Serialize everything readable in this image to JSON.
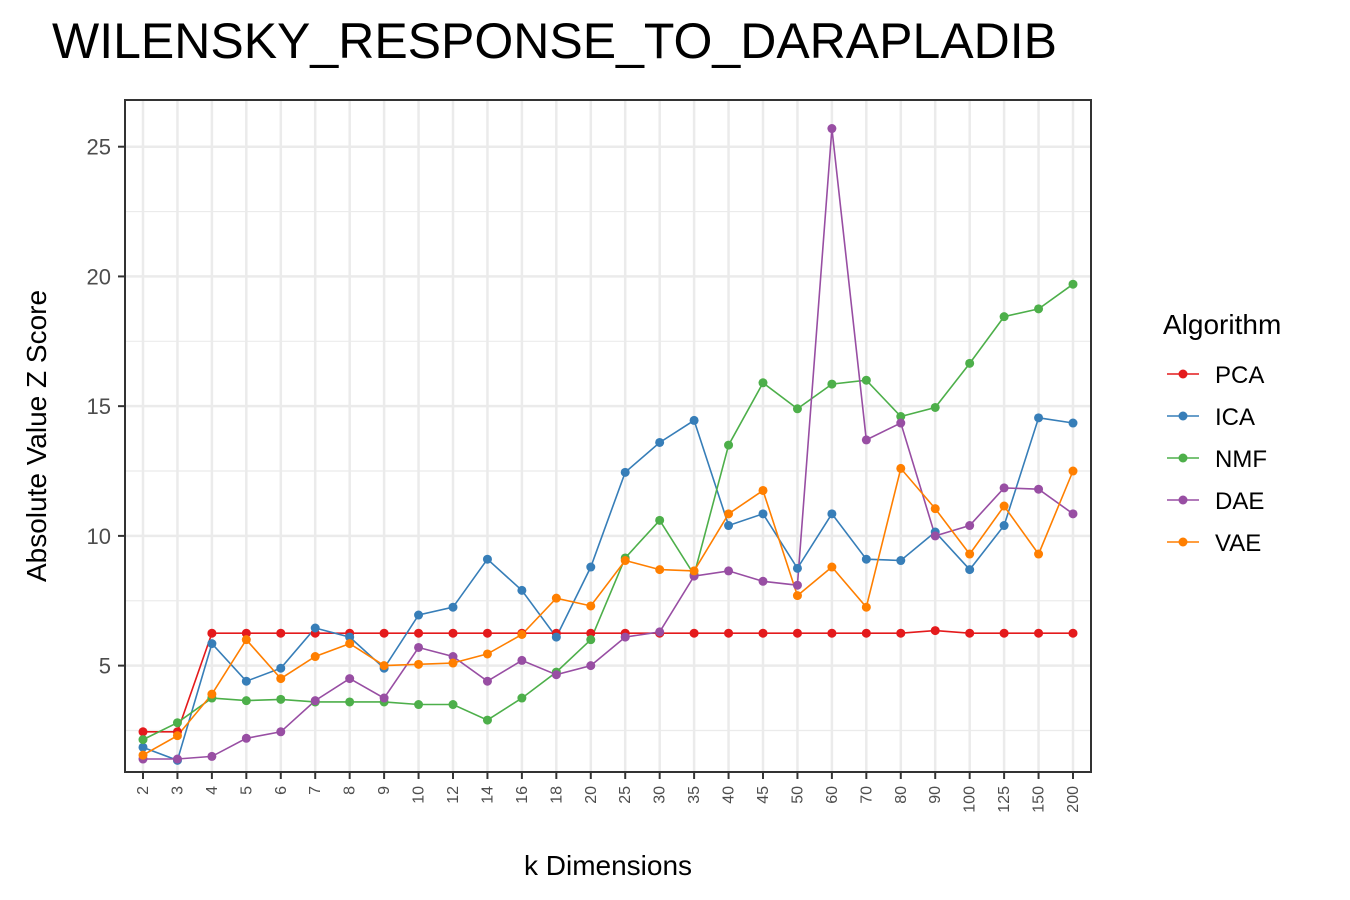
{
  "chart_data": {
    "type": "line",
    "title": "WILENSKY_RESPONSE_TO_DARAPLADIB",
    "xlabel": "k Dimensions",
    "ylabel": "Absolute Value Z Score",
    "ylim": [
      0.9,
      26.8
    ],
    "yticks": [
      5,
      10,
      15,
      20,
      25
    ],
    "grid": true,
    "legend": {
      "title": "Algorithm",
      "position": "right"
    },
    "categories": [
      "2",
      "3",
      "4",
      "5",
      "6",
      "7",
      "8",
      "9",
      "10",
      "12",
      "14",
      "16",
      "18",
      "20",
      "25",
      "30",
      "35",
      "40",
      "45",
      "50",
      "60",
      "70",
      "80",
      "90",
      "100",
      "125",
      "150",
      "200"
    ],
    "series": [
      {
        "name": "PCA",
        "color": "#E41A1C",
        "values": [
          2.45,
          2.45,
          6.25,
          6.25,
          6.25,
          6.25,
          6.25,
          6.25,
          6.25,
          6.25,
          6.25,
          6.25,
          6.25,
          6.25,
          6.25,
          6.25,
          6.25,
          6.25,
          6.25,
          6.25,
          6.25,
          6.25,
          6.25,
          6.35,
          6.25,
          6.25,
          6.25,
          6.25
        ]
      },
      {
        "name": "ICA",
        "color": "#377EB8",
        "values": [
          1.85,
          1.35,
          5.85,
          4.4,
          4.9,
          6.45,
          6.1,
          4.9,
          6.95,
          7.25,
          9.1,
          7.9,
          6.1,
          8.8,
          12.45,
          13.6,
          14.45,
          10.4,
          10.85,
          8.75,
          10.85,
          9.1,
          9.05,
          10.15,
          8.7,
          10.4,
          14.55,
          14.35
        ]
      },
      {
        "name": "NMF",
        "color": "#4DAF4A",
        "values": [
          2.15,
          2.8,
          3.75,
          3.65,
          3.7,
          3.6,
          3.6,
          3.6,
          3.5,
          3.5,
          2.9,
          3.75,
          4.75,
          6.0,
          9.15,
          10.6,
          8.5,
          13.5,
          15.9,
          14.9,
          15.85,
          16.0,
          14.6,
          14.95,
          16.65,
          18.45,
          18.75,
          19.7
        ]
      },
      {
        "name": "DAE",
        "color": "#984EA3",
        "values": [
          1.4,
          1.4,
          1.5,
          2.2,
          2.45,
          3.65,
          4.5,
          3.75,
          5.7,
          5.35,
          4.4,
          5.2,
          4.65,
          5.0,
          6.1,
          6.3,
          8.45,
          8.65,
          8.25,
          8.1,
          25.7,
          13.7,
          14.35,
          10.0,
          10.4,
          11.85,
          11.8,
          10.85
        ]
      },
      {
        "name": "VAE",
        "color": "#FF7F00",
        "values": [
          1.55,
          2.3,
          3.9,
          6.0,
          4.5,
          5.35,
          5.85,
          5.0,
          5.05,
          5.1,
          5.45,
          6.2,
          7.6,
          7.3,
          9.05,
          8.7,
          8.65,
          10.85,
          11.75,
          7.7,
          8.8,
          7.25,
          12.6,
          11.05,
          9.3,
          11.15,
          9.3,
          12.5
        ]
      }
    ]
  }
}
